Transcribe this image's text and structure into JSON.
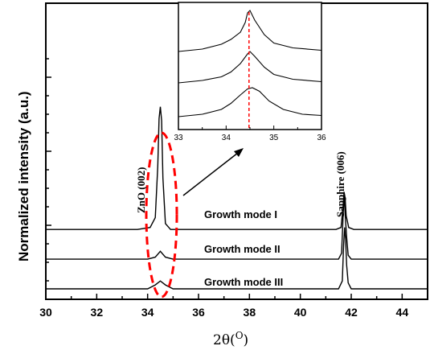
{
  "chart_data": {
    "type": "line",
    "title": "",
    "xlabel": "2θ(O)",
    "xlabel_base": "2θ(",
    "xlabel_sup": "O",
    "xlabel_close": ")",
    "ylabel": "Normalized intensity (a.u.)",
    "xlim": [
      30,
      45
    ],
    "xticks": [
      30,
      32,
      34,
      36,
      38,
      40,
      42,
      44
    ],
    "y_tick_labels_shown": false,
    "grid": false,
    "series": [
      {
        "name": "Growth mode I",
        "offset": 0.3,
        "points": [
          [
            30,
            0.3
          ],
          [
            33.6,
            0.3
          ],
          [
            34.1,
            0.31
          ],
          [
            34.3,
            0.36
          ],
          [
            34.4,
            0.62
          ],
          [
            34.45,
            0.86
          ],
          [
            34.5,
            0.92
          ],
          [
            34.55,
            0.85
          ],
          [
            34.6,
            0.56
          ],
          [
            34.7,
            0.33
          ],
          [
            34.9,
            0.3
          ],
          [
            41.4,
            0.3
          ],
          [
            41.6,
            0.31
          ],
          [
            41.68,
            0.42
          ],
          [
            41.72,
            0.49
          ],
          [
            41.76,
            0.46
          ],
          [
            41.8,
            0.37
          ],
          [
            41.85,
            0.34
          ],
          [
            41.9,
            0.31
          ],
          [
            42.1,
            0.3
          ],
          [
            45,
            0.3
          ]
        ]
      },
      {
        "name": "Growth mode II",
        "offset": 0.15,
        "points": [
          [
            30,
            0.15
          ],
          [
            34.0,
            0.15
          ],
          [
            34.3,
            0.16
          ],
          [
            34.5,
            0.19
          ],
          [
            34.7,
            0.16
          ],
          [
            35.0,
            0.15
          ],
          [
            41.5,
            0.15
          ],
          [
            41.62,
            0.18
          ],
          [
            41.68,
            0.37
          ],
          [
            41.72,
            0.48
          ],
          [
            41.76,
            0.38
          ],
          [
            41.82,
            0.26
          ],
          [
            41.88,
            0.17
          ],
          [
            42.0,
            0.15
          ],
          [
            45,
            0.15
          ]
        ]
      },
      {
        "name": "Growth mode III",
        "offset": 0.0,
        "points": [
          [
            30,
            0.0
          ],
          [
            34.0,
            0.0
          ],
          [
            34.3,
            0.02
          ],
          [
            34.5,
            0.04
          ],
          [
            34.7,
            0.02
          ],
          [
            35.0,
            0.0
          ],
          [
            41.5,
            0.0
          ],
          [
            41.65,
            0.04
          ],
          [
            41.7,
            0.22
          ],
          [
            41.74,
            0.31
          ],
          [
            41.78,
            0.25
          ],
          [
            41.82,
            0.12
          ],
          [
            41.88,
            0.03
          ],
          [
            42.0,
            0.0
          ],
          [
            45,
            0.0
          ]
        ]
      }
    ],
    "annotations": {
      "zno_peak": "ZnO (002)",
      "sapphire_peak": "Sapphire (006)"
    },
    "inset": {
      "xlim": [
        33,
        36
      ],
      "xticks": [
        33,
        34,
        35,
        36
      ],
      "dashed_line_x": 34.48,
      "series": [
        {
          "points": [
            [
              33,
              0.62
            ],
            [
              33.5,
              0.64
            ],
            [
              33.9,
              0.68
            ],
            [
              34.1,
              0.72
            ],
            [
              34.3,
              0.78
            ],
            [
              34.4,
              0.86
            ],
            [
              34.45,
              0.94
            ],
            [
              34.5,
              0.96
            ],
            [
              34.6,
              0.88
            ],
            [
              34.8,
              0.76
            ],
            [
              35.0,
              0.69
            ],
            [
              35.4,
              0.65
            ],
            [
              36,
              0.63
            ]
          ]
        },
        {
          "points": [
            [
              33,
              0.36
            ],
            [
              33.5,
              0.38
            ],
            [
              33.9,
              0.41
            ],
            [
              34.1,
              0.45
            ],
            [
              34.3,
              0.52
            ],
            [
              34.45,
              0.6
            ],
            [
              34.5,
              0.62
            ],
            [
              34.6,
              0.58
            ],
            [
              34.8,
              0.49
            ],
            [
              35.0,
              0.43
            ],
            [
              35.4,
              0.39
            ],
            [
              36,
              0.37
            ]
          ]
        },
        {
          "points": [
            [
              33,
              0.08
            ],
            [
              33.5,
              0.1
            ],
            [
              33.9,
              0.14
            ],
            [
              34.1,
              0.19
            ],
            [
              34.3,
              0.26
            ],
            [
              34.45,
              0.31
            ],
            [
              34.55,
              0.32
            ],
            [
              34.7,
              0.29
            ],
            [
              34.9,
              0.21
            ],
            [
              35.2,
              0.14
            ],
            [
              35.6,
              0.1
            ],
            [
              36,
              0.09
            ]
          ]
        }
      ]
    }
  }
}
